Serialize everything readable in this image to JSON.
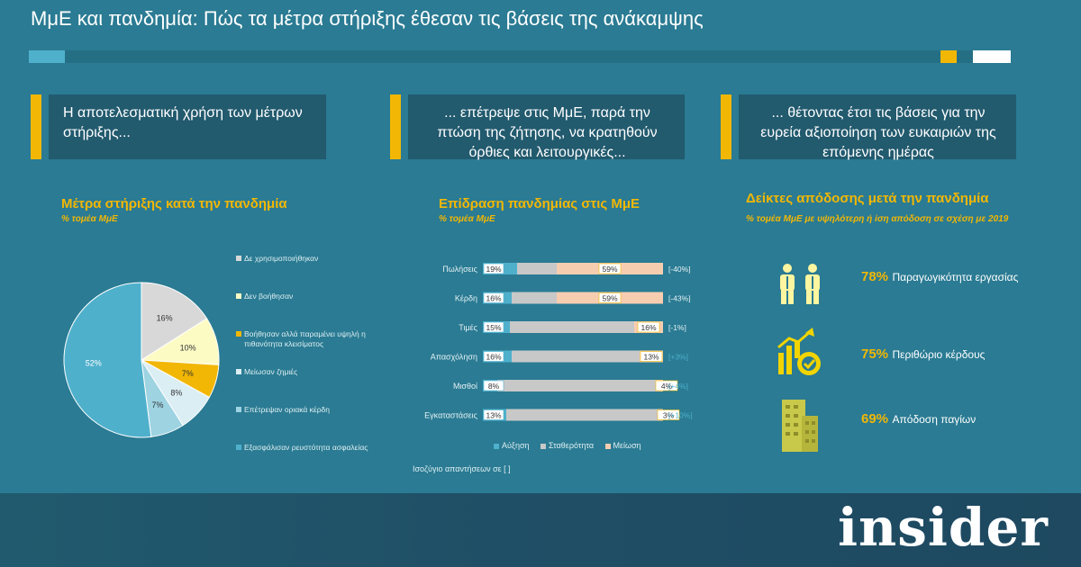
{
  "header": {
    "title": "ΜμΕ και πανδημία: Πώς τα μέτρα στήριξης έθεσαν τις βάσεις της ανάκαμψης"
  },
  "steps": [
    "Η αποτελεσματική χρήση των μέτρων στήριξης...",
    "... επέτρεψε στις ΜμΕ, παρά την πτώση της ζήτησης, να κρατηθούν όρθιες και λειτουργικές...",
    "... θέτοντας έτσι τις βάσεις για την ευρεία αξιοποίηση των ευκαιριών της επόμενης ημέρας"
  ],
  "pie_section": {
    "title": "Μέτρα στήριξης κατά την πανδημία",
    "subtitle": "% τομέα ΜμΕ"
  },
  "bar_section": {
    "title": "Επίδραση πανδημίας στις ΜμΕ",
    "subtitle": "% τομέα ΜμΕ",
    "note": "Ισοζύγιο απαντήσεων σε [ ]"
  },
  "ind_section": {
    "title": "Δείκτες απόδοσης μετά την πανδημία",
    "subtitle": "% τομέα ΜμΕ με υψηλότερη ή ίση απόδοση σε σχέση με 2019",
    "items": [
      {
        "value": "78%",
        "label": "Παραγωγικότητα εργασίας",
        "icon": "workers-icon"
      },
      {
        "value": "75%",
        "label": "Περιθώριο κέρδους",
        "icon": "profit-gear-icon"
      },
      {
        "value": "69%",
        "label": "Απόδοση παγίων",
        "icon": "building-icon"
      }
    ]
  },
  "brand": {
    "logo": "insider"
  },
  "colors": {
    "background": "#2a7b93",
    "accent_yellow": "#f2b705",
    "light_blue": "#4fb0cc",
    "gray": "#bfbfbf",
    "peach": "#f7cdb0",
    "pale_yellow": "#fdfbc4",
    "dark_box": "#225a6e"
  },
  "chart_data": [
    {
      "type": "pie",
      "title": "Μέτρα στήριξης κατά την πανδημία",
      "subtitle": "% τομέα ΜμΕ",
      "legend_position": "right",
      "slices": [
        {
          "label": "Δε χρησιμοποιήθηκαν",
          "value": 16,
          "value_label": "16%",
          "color": "#d8d8d8"
        },
        {
          "label": "Δεν βοήθησαν",
          "value": 10,
          "value_label": "10%",
          "color": "#fdfbc4"
        },
        {
          "label": "Βοήθησαν αλλά παραμένει υψηλή η πιθανότητα κλεισίματος",
          "value": 7,
          "value_label": "7%",
          "color": "#f2b705"
        },
        {
          "label": "Μείωσαν ζημιές",
          "value": 8,
          "value_label": "8%",
          "color": "#dbeef4"
        },
        {
          "label": "Επέτρεψαν οριακά κέρδη",
          "value": 7,
          "value_label": "7%",
          "color": "#9ed3e2"
        },
        {
          "label": "Εξασφάλισαν ρευστότητα ασφαλείας",
          "value": 52,
          "value_label": "52%",
          "color": "#4fb0cc"
        }
      ]
    },
    {
      "type": "bar",
      "orientation": "horizontal",
      "stacked": true,
      "title": "Επίδραση πανδημίας στις ΜμΕ",
      "subtitle": "% τομέα ΜμΕ",
      "categories": [
        "Πωλήσεις",
        "Κέρδη",
        "Τιμές",
        "Απασχόληση",
        "Μισθοί",
        "Εγκαταστάσεις"
      ],
      "series": [
        {
          "name": "Αύξηση",
          "values": [
            19,
            16,
            15,
            16,
            8,
            13
          ],
          "color": "#4fb0cc"
        },
        {
          "name": "Σταθερότητα",
          "values": [
            22,
            25,
            69,
            71,
            88,
            84
          ],
          "color": "#c8c8c8"
        },
        {
          "name": "Μείωση",
          "values": [
            59,
            59,
            16,
            13,
            4,
            3
          ],
          "color": "#f7cdb0"
        }
      ],
      "balance_labels": [
        "[-40%]",
        "[-43%]",
        "[-1%]",
        "[+3%]",
        "[+4%]",
        "[+10%]"
      ],
      "legend_position": "bottom"
    }
  ]
}
